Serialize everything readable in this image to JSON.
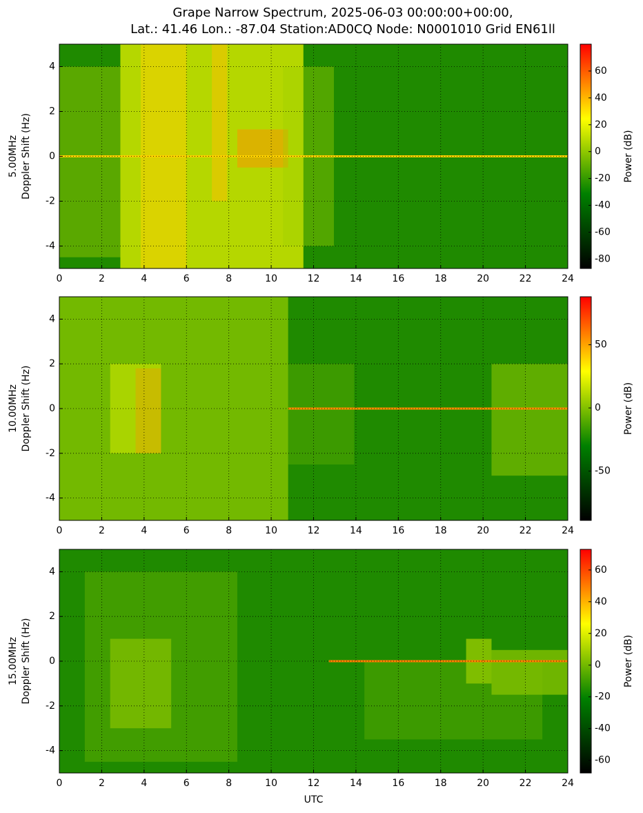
{
  "chart_data": [
    {
      "type": "heatmap",
      "title": [
        "Grape Narrow Spectrum, 2025-06-03 00:00:00+00:00,",
        "Lat.: 41.46 Lon.: -87.04 Station:AD0CQ Node: N0001010 Grid EN61ll"
      ],
      "ylabel": [
        "5.00MHz",
        "Doppler Shift (Hz)"
      ],
      "xlim": [
        0,
        24
      ],
      "xticks": [
        0,
        2,
        4,
        6,
        8,
        10,
        12,
        14,
        16,
        18,
        20,
        22,
        24
      ],
      "ylim": [
        -5,
        5
      ],
      "yticks": [
        -4,
        -2,
        0,
        2,
        4
      ],
      "grid": true,
      "colorbar_label": "Power (dB)",
      "clim": [
        -87,
        80
      ],
      "cticks": [
        -80,
        -60,
        -40,
        -20,
        0,
        20,
        40,
        60
      ],
      "colormap": [
        "#000000",
        "#008000",
        "#ffff00",
        "#ff0000"
      ]
    },
    {
      "type": "heatmap",
      "ylabel": [
        "10.00MHz",
        "Doppler Shift (Hz)"
      ],
      "xlim": [
        0,
        24
      ],
      "xticks": [
        0,
        2,
        4,
        6,
        8,
        10,
        12,
        14,
        16,
        18,
        20,
        22,
        24
      ],
      "ylim": [
        -5,
        5
      ],
      "yticks": [
        -4,
        -2,
        0,
        2,
        4
      ],
      "grid": true,
      "colorbar_label": "Power (dB)",
      "clim": [
        -89,
        88
      ],
      "cticks": [
        -50,
        0,
        50
      ],
      "colormap": [
        "#000000",
        "#008000",
        "#ffff00",
        "#ff0000"
      ]
    },
    {
      "type": "heatmap",
      "ylabel": [
        "15.00MHz",
        "Doppler Shift (Hz)"
      ],
      "xlabel": "UTC",
      "xlim": [
        0,
        24
      ],
      "xticks": [
        0,
        2,
        4,
        6,
        8,
        10,
        12,
        14,
        16,
        18,
        20,
        22,
        24
      ],
      "ylim": [
        -5,
        5
      ],
      "yticks": [
        -4,
        -2,
        0,
        2,
        4
      ],
      "grid": true,
      "colorbar_label": "Power (dB)",
      "clim": [
        -68,
        73
      ],
      "cticks": [
        -60,
        -40,
        -20,
        0,
        20,
        40,
        60
      ],
      "colormap": [
        "#000000",
        "#008000",
        "#ffff00",
        "#ff0000"
      ]
    }
  ]
}
